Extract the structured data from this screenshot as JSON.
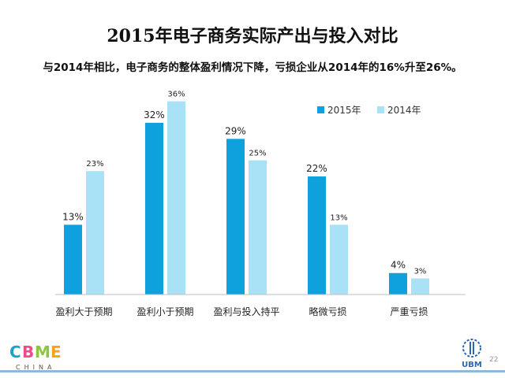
{
  "slide": {
    "title": "2015年电子商务实际产出与投入对比",
    "subtitle": "与2014年相比，电子商务的整体盈利情况下降，亏损企业从2014年的16%升至26%。",
    "page_number": "22"
  },
  "logos": {
    "cbme_text": "CBME",
    "cbme_sub": "CHINA",
    "ubm_text": "UBM"
  },
  "colors": {
    "series_2015": "#0ea1dd",
    "series_2014": "#a9e1f7",
    "axis": "#bfbfbf",
    "footer_line": "#8fb9dc"
  },
  "chart_data": {
    "type": "bar",
    "title": "",
    "xlabel": "",
    "ylabel": "",
    "categories": [
      "盈利大于预期",
      "盈利小于预期",
      "盈利与投入持平",
      "略微亏损",
      "严重亏损"
    ],
    "series": [
      {
        "name": "2015年",
        "values": [
          13,
          32,
          29,
          22,
          4
        ]
      },
      {
        "name": "2014年",
        "values": [
          23,
          36,
          25,
          13,
          3
        ]
      }
    ],
    "value_suffix": "%",
    "ylim": [
      0,
      38
    ],
    "grid": false,
    "legend_position": "top-right"
  }
}
